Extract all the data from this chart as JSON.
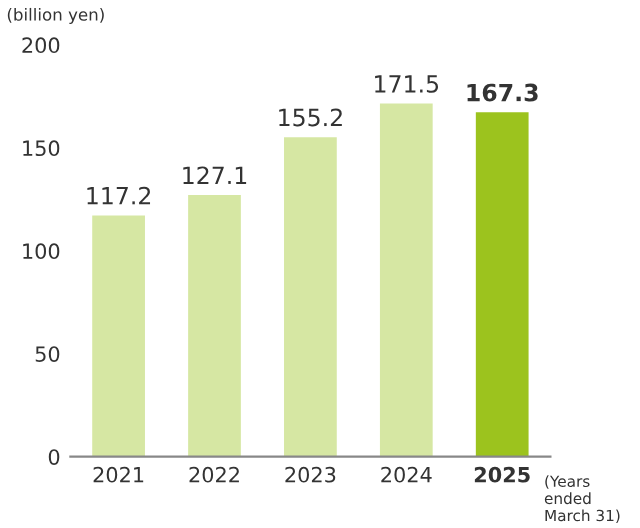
{
  "chart_data": {
    "type": "bar",
    "ylabel": "(billion yen)",
    "categories": [
      "2021",
      "2022",
      "2023",
      "2024",
      "2025"
    ],
    "values": [
      117.2,
      127.1,
      155.2,
      171.5,
      167.3
    ],
    "colors": [
      "#d6e7a3",
      "#d6e7a3",
      "#d6e7a3",
      "#d6e7a3",
      "#9cc31e"
    ],
    "ylim": [
      0,
      200
    ],
    "yticks": [
      0,
      50,
      100,
      150,
      200
    ],
    "grid": false,
    "data_labels": true,
    "annotations": [
      "(Years ended March 31)"
    ]
  }
}
